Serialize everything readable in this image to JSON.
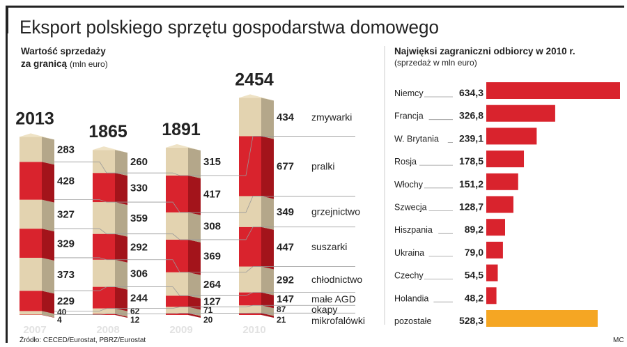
{
  "title": "Eksport polskiego sprzętu gospodarstwa domowego",
  "source": "Źródło: CECED/Eurostat, PBRZ/Eurostat",
  "author": "MC",
  "colors": {
    "red": "#d9232d",
    "red_side": "#a3141b",
    "beige": "#e3d3b0",
    "beige_side": "#b4a78a",
    "orange": "#f5a623",
    "line": "#999999"
  },
  "chart_data": [
    {
      "type": "bar",
      "stacked": true,
      "subtitle_bold": "Wartość sprzedaży",
      "subtitle_bold2": "za granicą",
      "subtitle_unit": "(mln euro)",
      "categories": [
        "2007",
        "2008",
        "2009",
        "2010"
      ],
      "totals": [
        "2013",
        "1865",
        "1891",
        "2454"
      ],
      "series": [
        {
          "name": "zmywarki",
          "values": [
            283,
            260,
            315,
            434
          ]
        },
        {
          "name": "pralki",
          "values": [
            428,
            330,
            417,
            677
          ]
        },
        {
          "name": "grzejnictwo",
          "values": [
            327,
            359,
            308,
            349
          ]
        },
        {
          "name": "suszarki",
          "values": [
            329,
            292,
            369,
            447
          ]
        },
        {
          "name": "chłodnictwo",
          "values": [
            373,
            306,
            264,
            292
          ]
        },
        {
          "name": "małe AGD",
          "values": [
            229,
            244,
            127,
            147
          ]
        },
        {
          "name": "okapy",
          "values": [
            40,
            62,
            71,
            87
          ]
        },
        {
          "name": "mikrofalówki",
          "values": [
            4,
            12,
            20,
            21
          ]
        }
      ]
    },
    {
      "type": "bar",
      "orientation": "horizontal",
      "title": "Najwięksi zagraniczni odbiorcy w 2010 r.",
      "subtitle": "(sprzedaż w mln euro)",
      "categories": [
        "Niemcy",
        "Francja",
        "W. Brytania",
        "Rosja",
        "Włochy",
        "Szwecja",
        "Hiszpania",
        "Ukraina",
        "Czechy",
        "Holandia",
        "pozostałe"
      ],
      "labels": [
        "634,3",
        "326,8",
        "239,1",
        "178,5",
        "151,2",
        "128,7",
        "89,2",
        "79,0",
        "54,5",
        "48,2",
        "528,3"
      ],
      "values": [
        634.3,
        326.8,
        239.1,
        178.5,
        151.2,
        128.7,
        89.2,
        79.0,
        54.5,
        48.2,
        528.3
      ]
    }
  ]
}
